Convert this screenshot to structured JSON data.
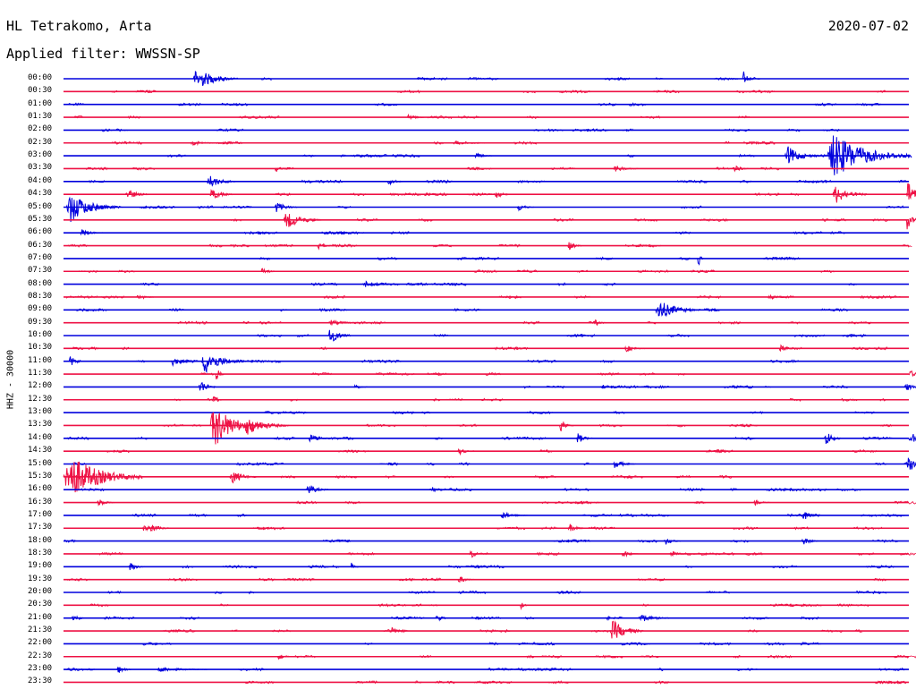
{
  "header": {
    "station": "HL Tetrakomo, Arta",
    "date": "2020-07-02",
    "filter": "Applied filter: WWSSN-SP"
  },
  "axis": {
    "ylabel": "HHZ - 30000"
  },
  "chart_data": {
    "type": "line",
    "title": "HL Tetrakomo, Arta",
    "subtitle": "Applied filter: WWSSN-SP",
    "x_range_minutes": [
      0,
      30
    ],
    "row_labels": [
      "00:00",
      "00:30",
      "01:00",
      "01:30",
      "02:00",
      "02:30",
      "03:00",
      "03:30",
      "04:00",
      "04:30",
      "05:00",
      "05:30",
      "06:00",
      "06:30",
      "07:00",
      "07:30",
      "08:00",
      "08:30",
      "09:00",
      "09:30",
      "10:00",
      "10:30",
      "11:00",
      "11:30",
      "12:00",
      "12:30",
      "13:00",
      "13:30",
      "14:00",
      "14:30",
      "15:00",
      "15:30",
      "16:00",
      "16:30",
      "17:00",
      "17:30",
      "18:00",
      "18:30",
      "19:00",
      "19:30",
      "20:00",
      "20:30",
      "21:00",
      "21:30",
      "22:00",
      "22:30",
      "23:00",
      "23:30"
    ],
    "row_colors": [
      "#0000dd",
      "#ee1144"
    ],
    "events": [
      {
        "row": 0,
        "minute": 4.6,
        "amp": 16,
        "dur": 1.6
      },
      {
        "row": 0,
        "minute": 24.1,
        "amp": 12,
        "dur": 0.4
      },
      {
        "row": 3,
        "minute": 12.2,
        "amp": 5,
        "dur": 0.6
      },
      {
        "row": 5,
        "minute": 4.5,
        "amp": 3,
        "dur": 1.2
      },
      {
        "row": 5,
        "minute": 13.8,
        "amp": 3,
        "dur": 1.6
      },
      {
        "row": 6,
        "minute": 14.6,
        "amp": 5,
        "dur": 0.6
      },
      {
        "row": 6,
        "minute": 25.6,
        "amp": 14,
        "dur": 1.2
      },
      {
        "row": 6,
        "minute": 27.1,
        "amp": 32,
        "dur": 3.0
      },
      {
        "row": 7,
        "minute": 7.5,
        "amp": 5,
        "dur": 0.5
      },
      {
        "row": 7,
        "minute": 19.5,
        "amp": 5,
        "dur": 0.9
      },
      {
        "row": 7,
        "minute": 23.8,
        "amp": 6,
        "dur": 0.5
      },
      {
        "row": 8,
        "minute": 5.1,
        "amp": 10,
        "dur": 1.0
      },
      {
        "row": 8,
        "minute": 11.5,
        "amp": 5,
        "dur": 0.6
      },
      {
        "row": 9,
        "minute": 2.2,
        "amp": 9,
        "dur": 0.8
      },
      {
        "row": 9,
        "minute": 5.2,
        "amp": 9,
        "dur": 0.8
      },
      {
        "row": 9,
        "minute": 15.3,
        "amp": 6,
        "dur": 0.6
      },
      {
        "row": 9,
        "minute": 27.3,
        "amp": 14,
        "dur": 1.2
      },
      {
        "row": 9,
        "minute": 29.9,
        "amp": 18,
        "dur": 0.8
      },
      {
        "row": 10,
        "minute": 0.1,
        "amp": 22,
        "dur": 1.8
      },
      {
        "row": 10,
        "minute": 7.5,
        "amp": 8,
        "dur": 0.8
      },
      {
        "row": 10,
        "minute": 16.1,
        "amp": 6,
        "dur": 0.6
      },
      {
        "row": 11,
        "minute": 7.8,
        "amp": 12,
        "dur": 1.4
      },
      {
        "row": 11,
        "minute": 29.9,
        "amp": 14,
        "dur": 0.5
      },
      {
        "row": 12,
        "minute": 0.6,
        "amp": 6,
        "dur": 0.8
      },
      {
        "row": 13,
        "minute": 9.0,
        "amp": 5,
        "dur": 0.6
      },
      {
        "row": 13,
        "minute": 17.9,
        "amp": 7,
        "dur": 0.5
      },
      {
        "row": 14,
        "minute": 22.5,
        "amp": 16,
        "dur": 0.2
      },
      {
        "row": 15,
        "minute": 7.0,
        "amp": 5,
        "dur": 0.6
      },
      {
        "row": 16,
        "minute": 10.6,
        "amp": 5,
        "dur": 1.2
      },
      {
        "row": 17,
        "minute": 2.6,
        "amp": 5,
        "dur": 0.6
      },
      {
        "row": 17,
        "minute": 25.0,
        "amp": 6,
        "dur": 0.6
      },
      {
        "row": 18,
        "minute": 21.0,
        "amp": 14,
        "dur": 1.6
      },
      {
        "row": 19,
        "minute": 9.4,
        "amp": 4,
        "dur": 1.2
      },
      {
        "row": 19,
        "minute": 18.8,
        "amp": 6,
        "dur": 0.5
      },
      {
        "row": 20,
        "minute": 9.4,
        "amp": 12,
        "dur": 0.8
      },
      {
        "row": 21,
        "minute": 19.9,
        "amp": 5,
        "dur": 0.8
      },
      {
        "row": 21,
        "minute": 25.4,
        "amp": 7,
        "dur": 0.5
      },
      {
        "row": 22,
        "minute": 0.2,
        "amp": 8,
        "dur": 0.6
      },
      {
        "row": 22,
        "minute": 3.8,
        "amp": 6,
        "dur": 1.0
      },
      {
        "row": 22,
        "minute": 4.9,
        "amp": 18,
        "dur": 1.5
      },
      {
        "row": 23,
        "minute": 5.4,
        "amp": 12,
        "dur": 0.3
      },
      {
        "row": 23,
        "minute": 30.0,
        "amp": 6,
        "dur": 0.6
      },
      {
        "row": 24,
        "minute": 4.8,
        "amp": 12,
        "dur": 0.6
      },
      {
        "row": 24,
        "minute": 10.3,
        "amp": 4,
        "dur": 0.5
      },
      {
        "row": 24,
        "minute": 19.1,
        "amp": 6,
        "dur": 0.2
      },
      {
        "row": 24,
        "minute": 29.8,
        "amp": 8,
        "dur": 0.6
      },
      {
        "row": 25,
        "minute": 5.3,
        "amp": 10,
        "dur": 0.3
      },
      {
        "row": 27,
        "minute": 5.2,
        "amp": 32,
        "dur": 1.8
      },
      {
        "row": 27,
        "minute": 6.4,
        "amp": 14,
        "dur": 1.6
      },
      {
        "row": 27,
        "minute": 17.6,
        "amp": 10,
        "dur": 0.5
      },
      {
        "row": 28,
        "minute": 8.7,
        "amp": 6,
        "dur": 0.8
      },
      {
        "row": 28,
        "minute": 18.2,
        "amp": 8,
        "dur": 0.6
      },
      {
        "row": 28,
        "minute": 27.0,
        "amp": 12,
        "dur": 0.6
      },
      {
        "row": 28,
        "minute": 30.0,
        "amp": 10,
        "dur": 0.9
      },
      {
        "row": 29,
        "minute": 14.0,
        "amp": 5,
        "dur": 0.6
      },
      {
        "row": 30,
        "minute": 19.5,
        "amp": 6,
        "dur": 0.8
      },
      {
        "row": 30,
        "minute": 29.9,
        "amp": 14,
        "dur": 1.0
      },
      {
        "row": 31,
        "minute": 0.0,
        "amp": 32,
        "dur": 2.8
      },
      {
        "row": 31,
        "minute": 5.9,
        "amp": 10,
        "dur": 1.0
      },
      {
        "row": 32,
        "minute": 8.6,
        "amp": 8,
        "dur": 0.8
      },
      {
        "row": 32,
        "minute": 13.0,
        "amp": 5,
        "dur": 0.6
      },
      {
        "row": 33,
        "minute": 1.2,
        "amp": 6,
        "dur": 0.6
      },
      {
        "row": 33,
        "minute": 24.5,
        "amp": 4,
        "dur": 0.6
      },
      {
        "row": 34,
        "minute": 15.5,
        "amp": 5,
        "dur": 1.0
      },
      {
        "row": 34,
        "minute": 26.2,
        "amp": 8,
        "dur": 0.6
      },
      {
        "row": 35,
        "minute": 2.8,
        "amp": 6,
        "dur": 0.6
      },
      {
        "row": 35,
        "minute": 3.0,
        "amp": 8,
        "dur": 0.8
      },
      {
        "row": 35,
        "minute": 17.9,
        "amp": 7,
        "dur": 0.6
      },
      {
        "row": 36,
        "minute": 21.3,
        "amp": 6,
        "dur": 0.6
      },
      {
        "row": 36,
        "minute": 26.2,
        "amp": 6,
        "dur": 0.6
      },
      {
        "row": 37,
        "minute": 14.4,
        "amp": 7,
        "dur": 0.6
      },
      {
        "row": 37,
        "minute": 19.8,
        "amp": 6,
        "dur": 0.6
      },
      {
        "row": 37,
        "minute": 21.5,
        "amp": 6,
        "dur": 0.6
      },
      {
        "row": 38,
        "minute": 2.3,
        "amp": 7,
        "dur": 0.6
      },
      {
        "row": 38,
        "minute": 10.2,
        "amp": 7,
        "dur": 0.3
      },
      {
        "row": 39,
        "minute": 14.0,
        "amp": 6,
        "dur": 0.6
      },
      {
        "row": 41,
        "minute": 16.2,
        "amp": 6,
        "dur": 0.3
      },
      {
        "row": 42,
        "minute": 0.3,
        "amp": 7,
        "dur": 0.5
      },
      {
        "row": 42,
        "minute": 13.2,
        "amp": 6,
        "dur": 0.5
      },
      {
        "row": 42,
        "minute": 19.2,
        "amp": 7,
        "dur": 0.3
      },
      {
        "row": 42,
        "minute": 20.4,
        "amp": 6,
        "dur": 1.2
      },
      {
        "row": 43,
        "minute": 11.6,
        "amp": 5,
        "dur": 0.6
      },
      {
        "row": 43,
        "minute": 19.4,
        "amp": 16,
        "dur": 1.2
      },
      {
        "row": 45,
        "minute": 7.6,
        "amp": 5,
        "dur": 0.5
      },
      {
        "row": 46,
        "minute": 1.9,
        "amp": 6,
        "dur": 0.5
      },
      {
        "row": 46,
        "minute": 3.3,
        "amp": 4,
        "dur": 1.8
      }
    ]
  }
}
